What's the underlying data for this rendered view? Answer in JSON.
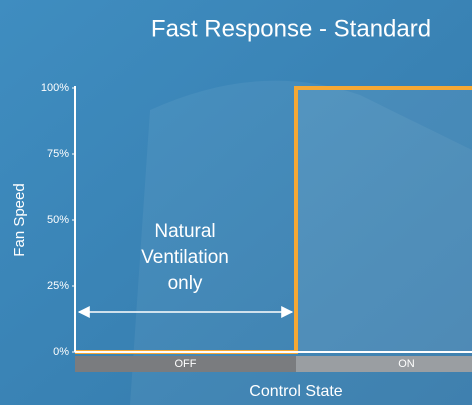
{
  "chart_data": {
    "type": "line",
    "title": "Fast Response - Standard",
    "y_label": "Fan Speed",
    "x_label": "Control State",
    "categories": [
      "OFF",
      "ON"
    ],
    "values": [
      0,
      100
    ],
    "color": "#f5a835",
    "ylim": [
      0,
      100
    ],
    "yticks": [
      {
        "value": 0,
        "label": "0%"
      },
      {
        "value": 25,
        "label": "25%"
      },
      {
        "value": 50,
        "label": "50%"
      },
      {
        "value": 75,
        "label": "75%"
      },
      {
        "value": 100,
        "label": "100%"
      }
    ],
    "annotation": [
      "Natural",
      "Ventilation",
      "only"
    ]
  }
}
